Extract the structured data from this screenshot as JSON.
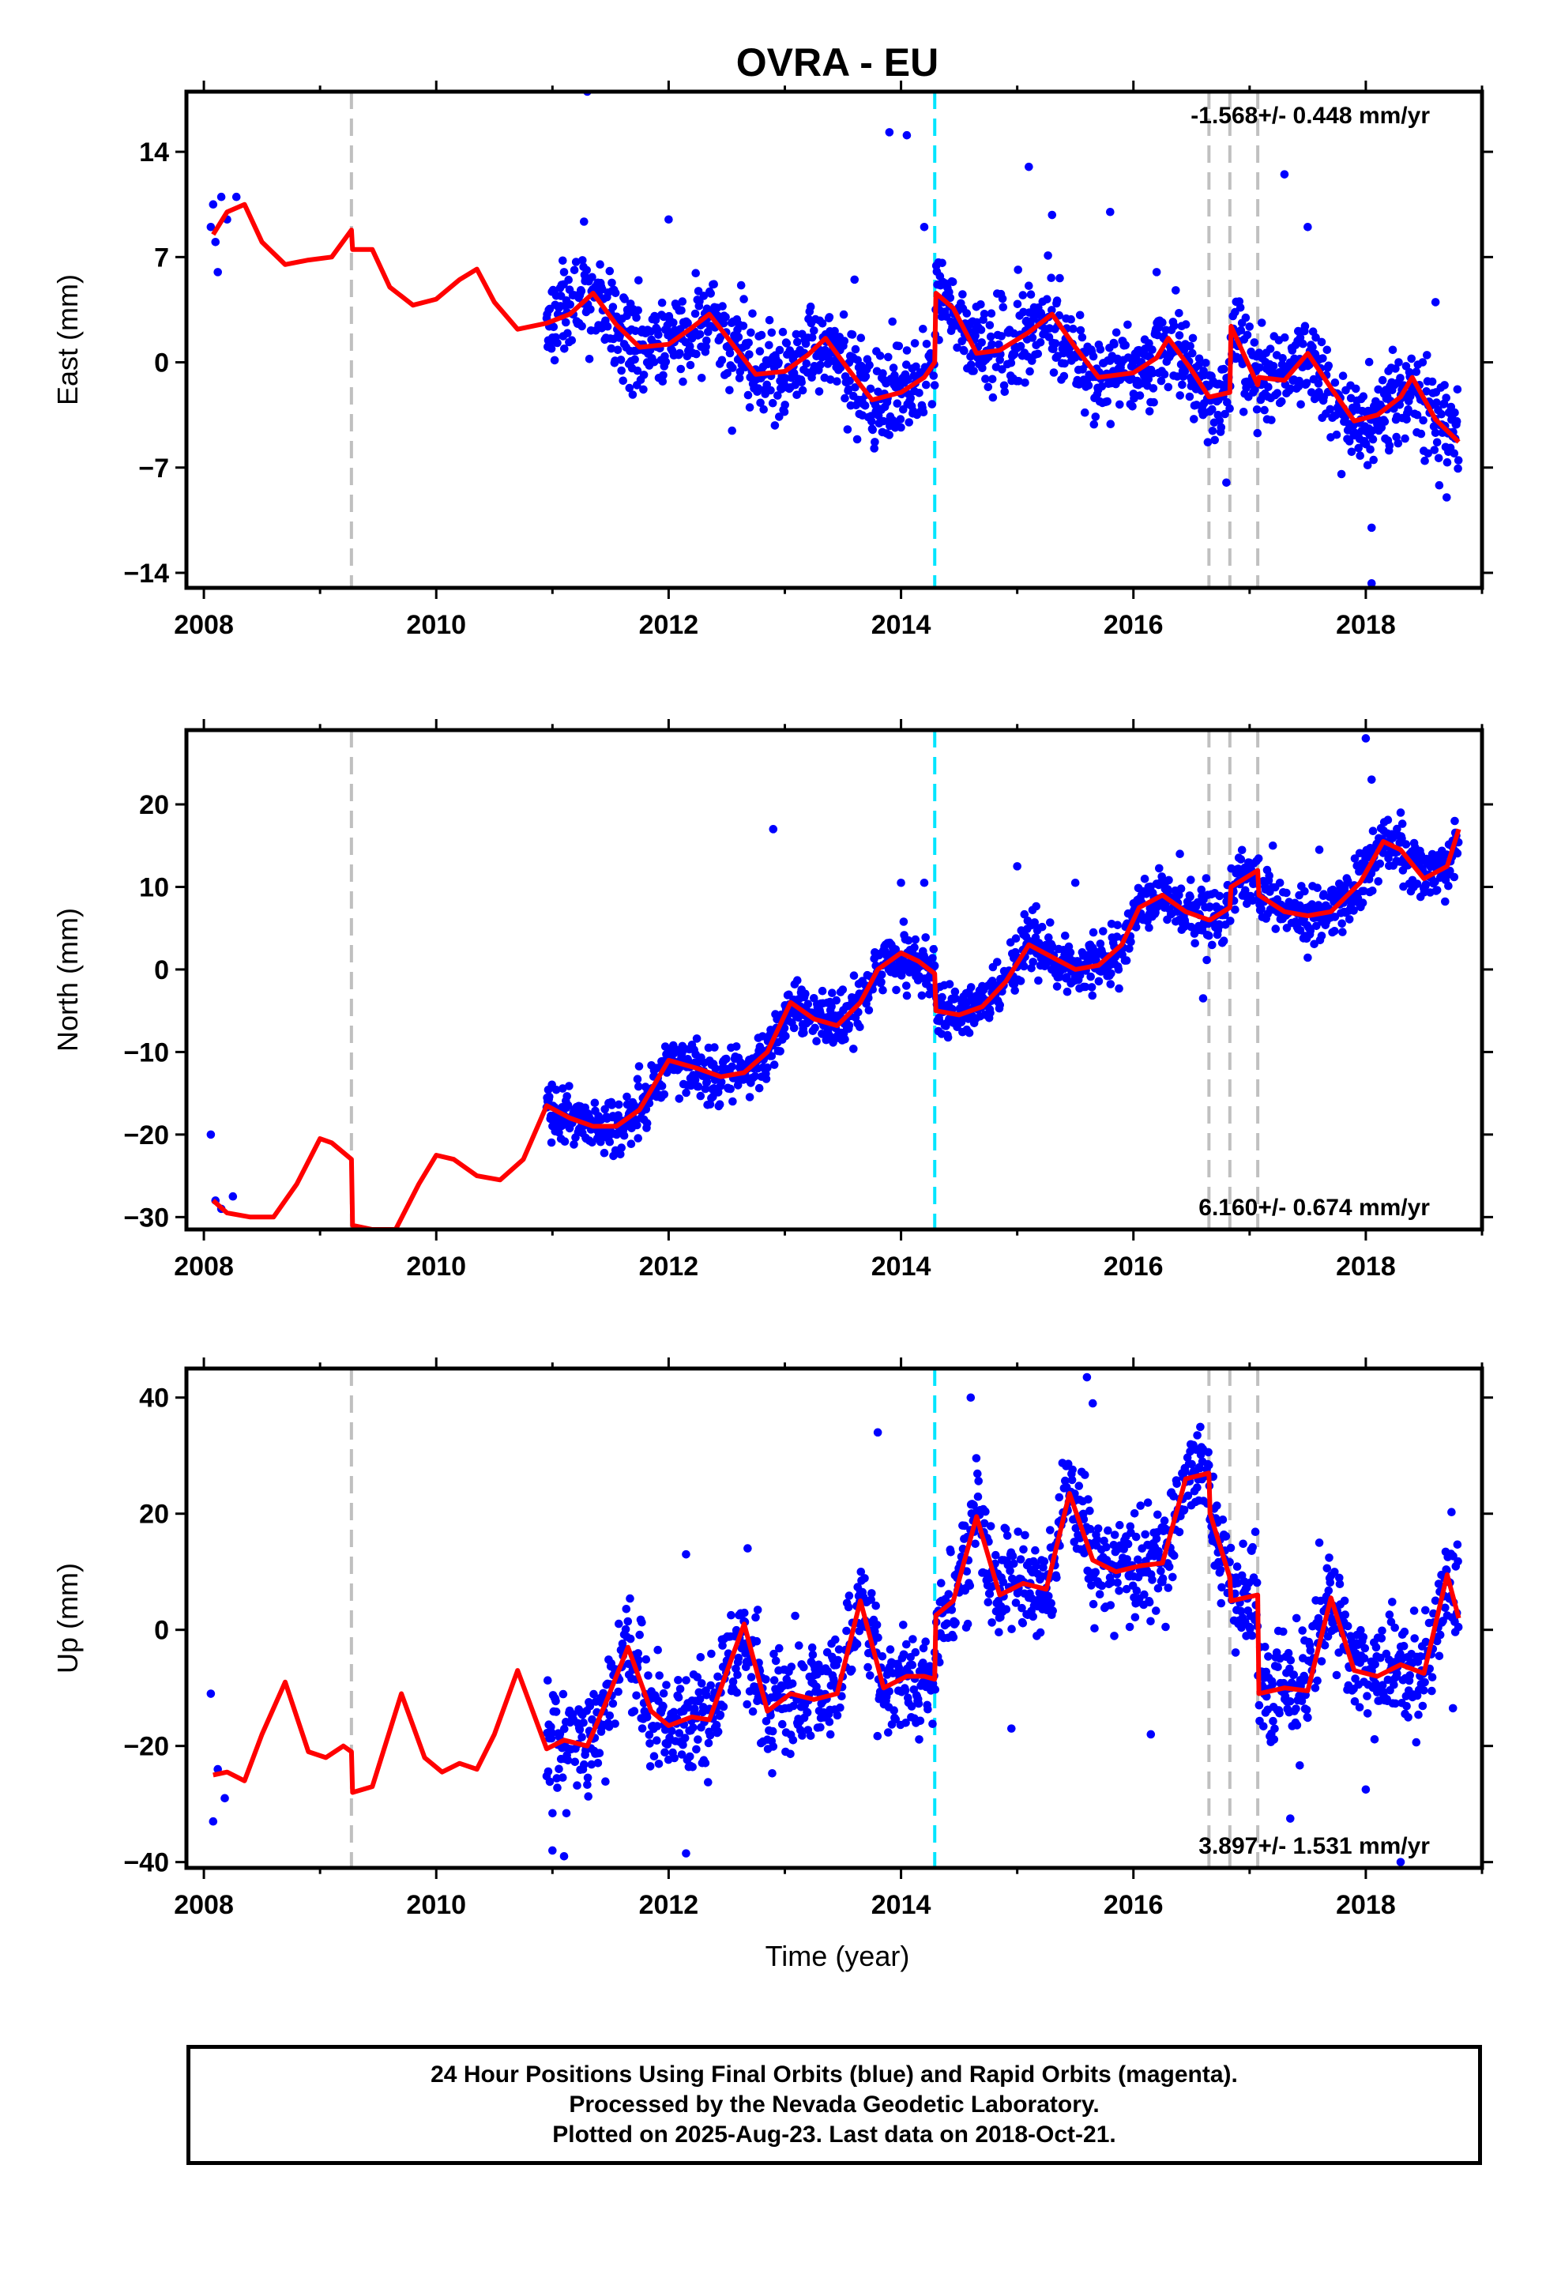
{
  "title": "OVRA - EU",
  "xlabel": "Time (year)",
  "x_tick_labels": [
    "2008",
    "2010",
    "2012",
    "2014",
    "2016",
    "2018"
  ],
  "colors": {
    "data": "#0000ff",
    "model": "#ff0000",
    "offset_gray": "#c0c0c0",
    "offset_cyan": "#00e5ff"
  },
  "panels": [
    {
      "id": "east",
      "ylabel": "East (mm)",
      "rate": "-1.568+/- 0.448 mm/yr",
      "rate_position": "top-right",
      "ytick_labels": [
        "14",
        "7",
        "0",
        "-7",
        "-14"
      ]
    },
    {
      "id": "north",
      "ylabel": "North (mm)",
      "rate": "6.160+/- 0.674 mm/yr",
      "rate_position": "bottom-right",
      "ytick_labels": [
        "20",
        "10",
        "0",
        "-10",
        "-20",
        "-30"
      ]
    },
    {
      "id": "up",
      "ylabel": "Up (mm)",
      "rate": "3.897+/- 1.531 mm/yr",
      "rate_position": "bottom-right",
      "ytick_labels": [
        "40",
        "20",
        "0",
        "-20",
        "-40"
      ]
    }
  ],
  "footer": {
    "line1": "24 Hour Positions Using Final Orbits (blue) and Rapid Orbits (magenta).",
    "line2": "Processed by the Nevada Geodetic Laboratory.",
    "line3": "Plotted on 2025-Aug-23. Last data on 2018-Oct-21."
  },
  "chart_data": [
    {
      "type": "scatter",
      "title": "OVRA - EU",
      "xlabel": "",
      "ylabel": "East (mm)",
      "xlim": [
        2007.85,
        2019.0
      ],
      "ylim": [
        -15,
        18
      ],
      "xticks": [
        2008,
        2010,
        2012,
        2014,
        2016,
        2018
      ],
      "yticks": [
        14,
        7,
        0,
        -7,
        -14
      ],
      "offsets_gray": [
        2009.27,
        2016.65,
        2016.83,
        2017.07
      ],
      "offsets_cyan": [
        2014.29
      ],
      "annotation": "-1.568+/- 0.448 mm/yr",
      "series": [
        {
          "type": "line",
          "color": "#ff0000",
          "x": [
            2008.08,
            2008.2,
            2008.35,
            2008.5,
            2008.7,
            2008.9,
            2009.1,
            2009.27,
            2009.28,
            2009.45,
            2009.6,
            2009.8,
            2010.0,
            2010.2,
            2010.35,
            2010.5,
            2010.7,
            2010.95,
            2011.15,
            2011.35,
            2011.55,
            2011.75,
            2012.0,
            2012.2,
            2012.35,
            2012.55,
            2012.75,
            2013.0,
            2013.2,
            2013.35,
            2013.55,
            2013.75,
            2014.0,
            2014.2,
            2014.29,
            2014.3,
            2014.45,
            2014.65,
            2014.85,
            2015.1,
            2015.3,
            2015.5,
            2015.7,
            2016.0,
            2016.2,
            2016.3,
            2016.5,
            2016.65,
            2016.66,
            2016.83,
            2016.84,
            2017.07,
            2017.08,
            2017.3,
            2017.5,
            2017.7,
            2017.9,
            2018.1,
            2018.3,
            2018.4,
            2018.6,
            2018.8
          ],
          "y": [
            8.5,
            10,
            10.5,
            8,
            6.5,
            6.8,
            7,
            8.8,
            7.5,
            7.5,
            5,
            3.8,
            4.2,
            5.5,
            6.2,
            4,
            2.2,
            2.6,
            3.2,
            4.6,
            2.5,
            1,
            1.2,
            2.3,
            3.2,
            1.2,
            -0.8,
            -0.6,
            0.5,
            1.6,
            -0.5,
            -2.5,
            -2,
            -1,
            0,
            4.6,
            3.6,
            0.6,
            0.8,
            2,
            3.2,
            1,
            -1,
            -0.7,
            0.3,
            1.6,
            -0.5,
            -2.3,
            -2.3,
            -2.0,
            2.4,
            -1.5,
            -1,
            -1.2,
            0.6,
            -1.7,
            -3.9,
            -3.5,
            -2.3,
            -1,
            -3.8,
            -5.3
          ]
        },
        {
          "type": "scatter",
          "color": "#0000ff",
          "x": [
            2008.06,
            2008.08,
            2008.1,
            2008.12,
            2008.15,
            2008.2,
            2008.28,
            2011.1,
            2011.3,
            2012.0,
            2013.6,
            2013.9,
            2014.05,
            2014.2,
            2015.1,
            2015.3,
            2015.8,
            2016.2,
            2016.8,
            2017.3,
            2017.5,
            2018.05,
            2018.05,
            2018.6
          ],
          "y": [
            9,
            10.5,
            8,
            6,
            11,
            9.5,
            11,
            6,
            18,
            9.5,
            5.5,
            15.3,
            15.1,
            9,
            13,
            9.8,
            10,
            6,
            -8,
            12.5,
            9,
            -11,
            -14.7,
            4
          ]
        }
      ]
    },
    {
      "type": "scatter",
      "title": "",
      "xlabel": "",
      "ylabel": "North (mm)",
      "xlim": [
        2007.85,
        2019.0
      ],
      "ylim": [
        -31.5,
        29
      ],
      "xticks": [
        2008,
        2010,
        2012,
        2014,
        2016,
        2018
      ],
      "yticks": [
        20,
        10,
        0,
        -10,
        -20,
        -30
      ],
      "offsets_gray": [
        2009.27,
        2016.65,
        2016.83,
        2017.07
      ],
      "offsets_cyan": [
        2014.29
      ],
      "annotation": "6.160+/- 0.674 mm/yr",
      "series": [
        {
          "type": "line",
          "color": "#ff0000",
          "x": [
            2008.08,
            2008.2,
            2008.4,
            2008.6,
            2008.8,
            2009.0,
            2009.1,
            2009.27,
            2009.28,
            2009.45,
            2009.65,
            2009.85,
            2010.0,
            2010.15,
            2010.35,
            2010.55,
            2010.75,
            2010.95,
            2011.15,
            2011.35,
            2011.55,
            2011.75,
            2012.0,
            2012.25,
            2012.45,
            2012.65,
            2012.85,
            2013.05,
            2013.25,
            2013.45,
            2013.65,
            2013.8,
            2014.0,
            2014.15,
            2014.29,
            2014.3,
            2014.5,
            2014.7,
            2014.9,
            2015.1,
            2015.3,
            2015.5,
            2015.7,
            2015.9,
            2016.05,
            2016.25,
            2016.45,
            2016.65,
            2016.66,
            2016.83,
            2016.84,
            2017.07,
            2017.08,
            2017.3,
            2017.5,
            2017.7,
            2017.95,
            2018.15,
            2018.3,
            2018.5,
            2018.7,
            2018.8
          ],
          "y": [
            -28,
            -29.5,
            -30,
            -30,
            -26,
            -20.5,
            -21,
            -23,
            -31,
            -31.5,
            -31.5,
            -26,
            -22.5,
            -23,
            -25,
            -25.5,
            -23,
            -16.5,
            -18,
            -19,
            -19,
            -17,
            -11,
            -12,
            -13,
            -12.5,
            -10,
            -4,
            -6,
            -6.8,
            -4,
            0,
            2,
            1,
            -0.5,
            -5,
            -5.5,
            -4.5,
            -1.5,
            3,
            1.5,
            0,
            0.5,
            3,
            7.5,
            9,
            7,
            6,
            6,
            7.5,
            10,
            12,
            9,
            7,
            6.5,
            7,
            10.5,
            15.5,
            14.5,
            11,
            12.5,
            17
          ]
        },
        {
          "type": "scatter",
          "color": "#0000ff",
          "x": [
            2008.06,
            2008.1,
            2008.15,
            2008.25,
            2012.9,
            2014.0,
            2014.2,
            2015.0,
            2015.5,
            2016.4,
            2016.6,
            2017.2,
            2017.6,
            2018.0,
            2018.05,
            2018.3
          ],
          "y": [
            -20,
            -28,
            -29,
            -27.5,
            17,
            10.5,
            10.5,
            12.5,
            10.5,
            14,
            -3.5,
            15,
            14.5,
            28,
            23,
            19
          ]
        }
      ]
    },
    {
      "type": "scatter",
      "title": "",
      "xlabel": "Time (year)",
      "ylabel": "Up (mm)",
      "xlim": [
        2007.85,
        2019.0
      ],
      "ylim": [
        -41,
        45
      ],
      "xticks": [
        2008,
        2010,
        2012,
        2014,
        2016,
        2018
      ],
      "yticks": [
        40,
        20,
        0,
        -20,
        -40
      ],
      "offsets_gray": [
        2009.27,
        2016.65,
        2016.83,
        2017.07
      ],
      "offsets_cyan": [
        2014.29
      ],
      "annotation": "3.897+/- 1.531 mm/yr",
      "series": [
        {
          "type": "line",
          "color": "#ff0000",
          "x": [
            2008.08,
            2008.2,
            2008.35,
            2008.5,
            2008.7,
            2008.9,
            2009.05,
            2009.2,
            2009.27,
            2009.28,
            2009.45,
            2009.7,
            2009.9,
            2010.05,
            2010.2,
            2010.35,
            2010.5,
            2010.7,
            2010.95,
            2011.1,
            2011.3,
            2011.45,
            2011.65,
            2011.85,
            2012.0,
            2012.2,
            2012.35,
            2012.65,
            2012.85,
            2013.05,
            2013.25,
            2013.45,
            2013.65,
            2013.85,
            2014.05,
            2014.2,
            2014.29,
            2014.3,
            2014.45,
            2014.65,
            2014.85,
            2015.05,
            2015.25,
            2015.45,
            2015.65,
            2015.85,
            2016.05,
            2016.25,
            2016.45,
            2016.65,
            2016.66,
            2016.83,
            2016.84,
            2017.07,
            2017.08,
            2017.3,
            2017.5,
            2017.7,
            2017.9,
            2018.1,
            2018.3,
            2018.5,
            2018.7,
            2018.8
          ],
          "y": [
            -25,
            -24.5,
            -26,
            -18,
            -9,
            -21,
            -22,
            -20,
            -21,
            -28,
            -27,
            -11,
            -22,
            -24.5,
            -23,
            -24,
            -18,
            -7,
            -20.5,
            -19,
            -20,
            -13,
            -3,
            -14,
            -16.5,
            -15,
            -15.5,
            1,
            -14,
            -11,
            -12,
            -11,
            5,
            -10,
            -8,
            -8,
            -8.5,
            2.5,
            5,
            19.5,
            6,
            8,
            7,
            23.5,
            12,
            10,
            11,
            11.5,
            26,
            27,
            20,
            9,
            5,
            6,
            -11,
            -10,
            -10.5,
            5.5,
            -7,
            -8,
            -6,
            -7.5,
            9.5,
            2
          ]
        },
        {
          "type": "scatter",
          "color": "#0000ff",
          "x": [
            2008.06,
            2008.08,
            2008.12,
            2008.18,
            2011.0,
            2011.1,
            2012.15,
            2012.15,
            2013.8,
            2014.6,
            2014.95,
            2015.6,
            2015.65,
            2016.15,
            2016.55,
            2017.35,
            2017.6,
            2018.0,
            2018.3,
            2018.75
          ],
          "y": [
            -11,
            -33,
            -24,
            -29,
            -38,
            -39,
            13,
            -38.5,
            34,
            40,
            -17,
            43.5,
            39,
            -18,
            33.5,
            -32.5,
            15,
            -27.5,
            -40,
            -13.5
          ]
        }
      ]
    }
  ]
}
